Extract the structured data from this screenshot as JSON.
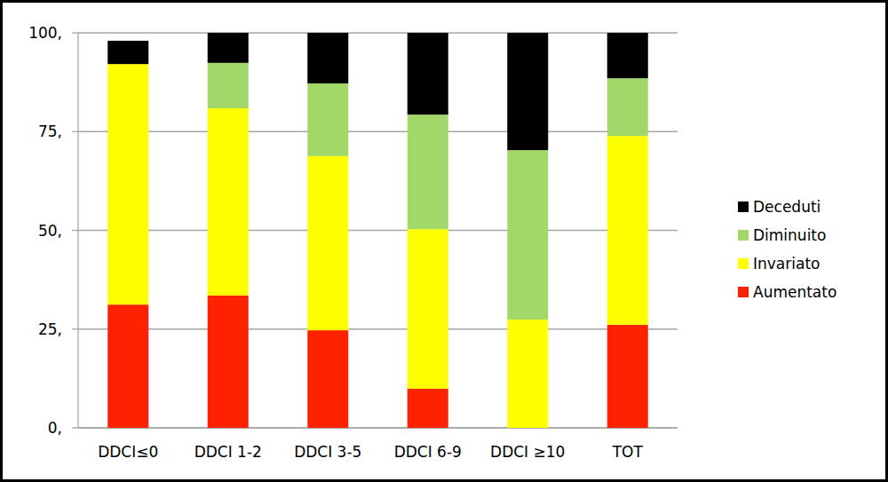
{
  "chart_data": {
    "type": "bar",
    "stacked": true,
    "grid": true,
    "legend": "right",
    "categories": [
      "DDCI≤0",
      "DDCI 1-2",
      "DDCI 3-5",
      "DDCI 6-9",
      "DDCI ≥10",
      "TOT"
    ],
    "series": [
      {
        "name": "Aumentato",
        "color": "#ff2200",
        "values": [
          31.2,
          33.5,
          24.7,
          9.9,
          0,
          26.1
        ]
      },
      {
        "name": "Invariato",
        "color": "#ffff00",
        "values": [
          60.9,
          47.4,
          44.1,
          40.4,
          27.4,
          47.8
        ]
      },
      {
        "name": "Diminuito",
        "color": "#a2d86a",
        "values": [
          0,
          11.5,
          18.4,
          29.0,
          42.9,
          14.6
        ]
      },
      {
        "name": "Deceduti",
        "color": "#000000",
        "values": [
          5.9,
          7.6,
          12.8,
          20.7,
          29.7,
          11.5
        ]
      }
    ],
    "ylim": [
      0,
      100
    ],
    "yticks": [
      {
        "value": 0,
        "label": "0,"
      },
      {
        "value": 25,
        "label": "25,"
      },
      {
        "value": 50,
        "label": "50,"
      },
      {
        "value": 75,
        "label": "75,"
      },
      {
        "value": 100,
        "label": "100,"
      }
    ]
  }
}
